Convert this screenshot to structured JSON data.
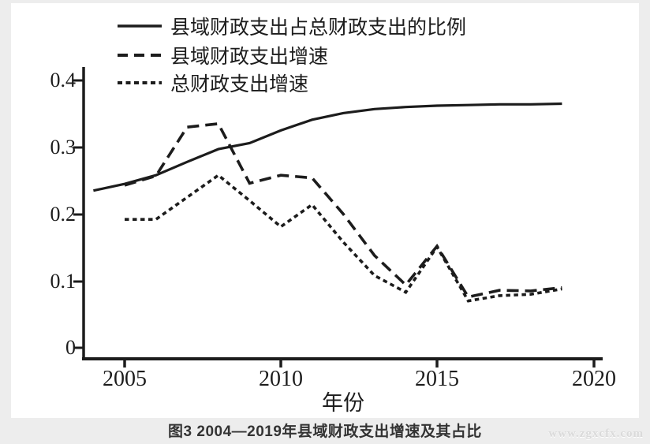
{
  "figure": {
    "caption": "图3  2004—2019年县域财政支出增速及其占比",
    "watermark": "www.zgxcfx.com"
  },
  "chart_data": {
    "type": "line",
    "title": "",
    "xlabel": "年份",
    "ylabel": "",
    "xlim": [
      2003.7,
      2020.3
    ],
    "ylim": [
      0,
      0.4
    ],
    "grid": false,
    "legend_position": "top-left-inside",
    "line_color": "#1c1c1c",
    "x_tick_labels": [
      "2005",
      "2010",
      "2015",
      "2020"
    ],
    "y_tick_labels": [
      "0.4",
      "0.3",
      "0.2",
      "0.1",
      "0"
    ],
    "series": [
      {
        "name": "县域财政支出占总财政支出的比例",
        "style": "solid",
        "x": [
          2004,
          2005,
          2006,
          2007,
          2008,
          2009,
          2010,
          2011,
          2012,
          2013,
          2014,
          2015,
          2016,
          2017,
          2018,
          2019
        ],
        "values": [
          0.235,
          0.245,
          0.258,
          0.278,
          0.297,
          0.306,
          0.325,
          0.341,
          0.351,
          0.357,
          0.36,
          0.362,
          0.363,
          0.364,
          0.364,
          0.365
        ]
      },
      {
        "name": "县域财政支出增速",
        "style": "dashed",
        "x": [
          2005,
          2006,
          2007,
          2008,
          2009,
          2010,
          2011,
          2012,
          2013,
          2014,
          2015,
          2016,
          2017,
          2018,
          2019
        ],
        "values": [
          0.243,
          0.257,
          0.33,
          0.335,
          0.246,
          0.258,
          0.254,
          0.2,
          0.138,
          0.094,
          0.152,
          0.076,
          0.086,
          0.085,
          0.09
        ]
      },
      {
        "name": "总财政支出增速",
        "style": "dotted",
        "x": [
          2005,
          2006,
          2007,
          2008,
          2009,
          2010,
          2011,
          2012,
          2013,
          2014,
          2015,
          2016,
          2017,
          2018,
          2019
        ],
        "values": [
          0.192,
          0.192,
          0.225,
          0.258,
          0.22,
          0.181,
          0.214,
          0.158,
          0.108,
          0.083,
          0.151,
          0.07,
          0.078,
          0.08,
          0.088
        ]
      }
    ]
  }
}
